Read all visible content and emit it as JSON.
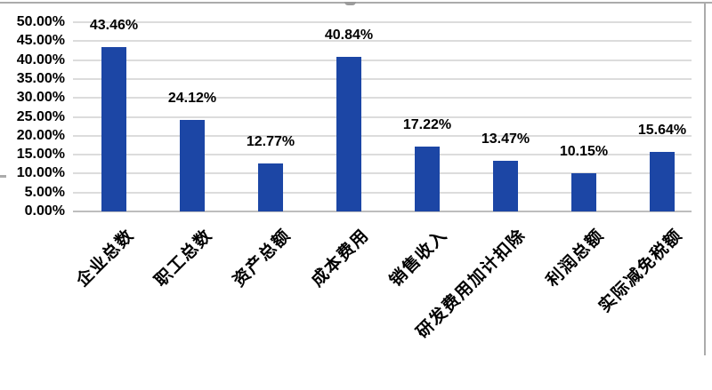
{
  "chart_data": {
    "type": "bar",
    "title": "",
    "xlabel": "",
    "ylabel": "",
    "categories": [
      "企业总数",
      "职工总数",
      "资产总额",
      "成本费用",
      "销售收入",
      "研发费用加计扣除",
      "利润总额",
      "实际减免税额"
    ],
    "values": [
      43.46,
      24.12,
      12.77,
      40.84,
      17.22,
      13.47,
      10.15,
      15.64
    ],
    "data_labels": [
      "43.46%",
      "24.12%",
      "12.77%",
      "40.84%",
      "17.22%",
      "13.47%",
      "10.15%",
      "15.64%"
    ],
    "y_ticks": [
      "50.00%",
      "45.00%",
      "40.00%",
      "35.00%",
      "30.00%",
      "25.00%",
      "20.00%",
      "15.00%",
      "10.00%",
      "5.00%",
      "0.00%"
    ],
    "ylim": [
      0,
      50
    ],
    "grid": true,
    "legend": "none",
    "x_label_rotation_deg": 45,
    "colors": {
      "bar": "#1C46A5",
      "gridline": "#DCDCDC",
      "axis_line": "#BDBDBD",
      "text": "#000000",
      "chart_border": "#ABABAB",
      "title_remnant": "#9B9B9B",
      "background": "#FFFFFF"
    }
  }
}
